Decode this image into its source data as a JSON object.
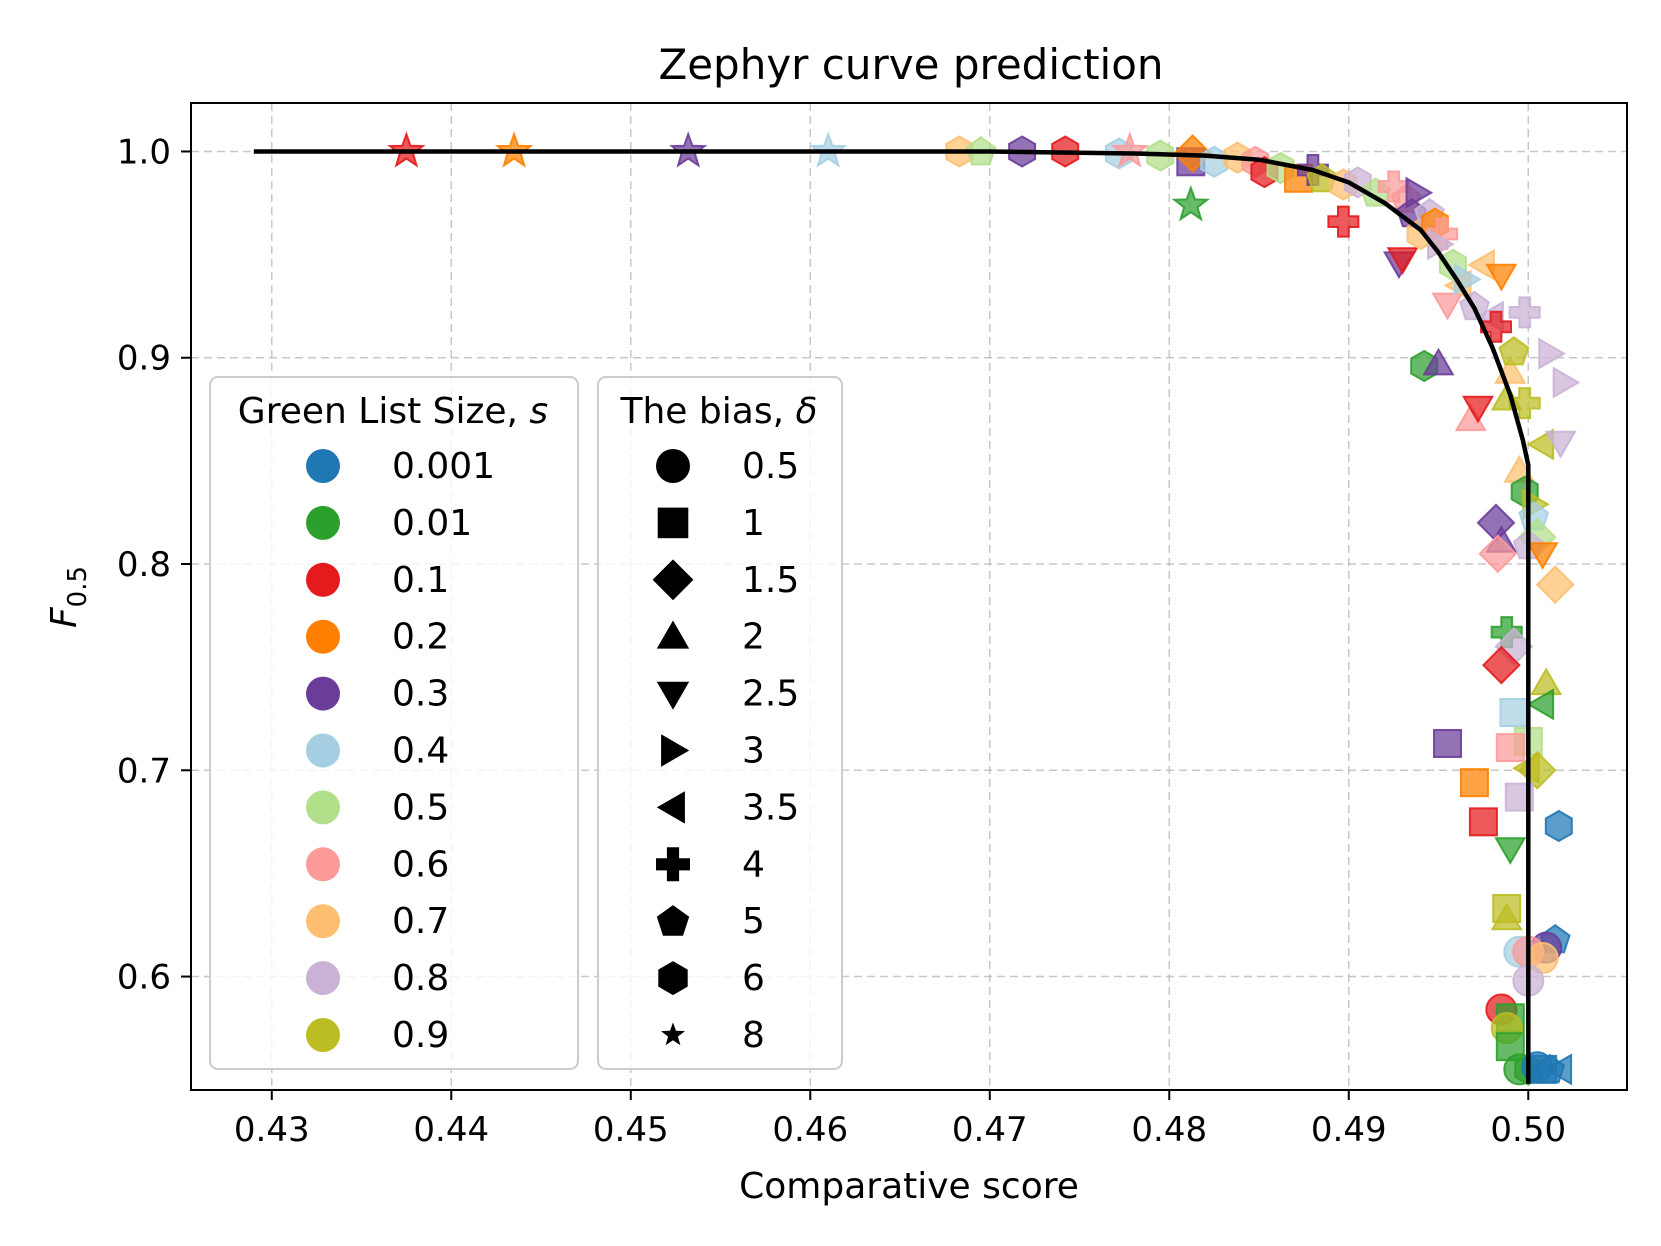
{
  "chart_data": {
    "type": "scatter",
    "title": "Zephyr curve prediction",
    "xlabel": "Comparative score",
    "ylabel_main": "F",
    "ylabel_sub": "0.5",
    "xlim": [
      0.4255,
      0.5055
    ],
    "ylim": [
      0.545,
      1.0235
    ],
    "xticks": [
      {
        "value": 0.43,
        "label": "0.43"
      },
      {
        "value": 0.44,
        "label": "0.44"
      },
      {
        "value": 0.45,
        "label": "0.45"
      },
      {
        "value": 0.46,
        "label": "0.46"
      },
      {
        "value": 0.47,
        "label": "0.47"
      },
      {
        "value": 0.48,
        "label": "0.48"
      },
      {
        "value": 0.49,
        "label": "0.49"
      },
      {
        "value": 0.5,
        "label": "0.50"
      }
    ],
    "yticks": [
      {
        "value": 0.6,
        "label": "0.6"
      },
      {
        "value": 0.7,
        "label": "0.7"
      },
      {
        "value": 0.8,
        "label": "0.8"
      },
      {
        "value": 0.9,
        "label": "0.9"
      },
      {
        "value": 1.0,
        "label": "1.0"
      }
    ],
    "grid": true,
    "legend_green": {
      "title_main": "Green List Size, ",
      "title_var": "s",
      "entries": [
        {
          "label": "0.001",
          "color": "#1f77b4"
        },
        {
          "label": "0.01",
          "color": "#2ca02c"
        },
        {
          "label": "0.1",
          "color": "#e41a1c"
        },
        {
          "label": "0.2",
          "color": "#ff7f00"
        },
        {
          "label": "0.3",
          "color": "#6a3d9a"
        },
        {
          "label": "0.4",
          "color": "#a6cee3"
        },
        {
          "label": "0.5",
          "color": "#b2df8a"
        },
        {
          "label": "0.6",
          "color": "#fb9a99"
        },
        {
          "label": "0.7",
          "color": "#fdbf6f"
        },
        {
          "label": "0.8",
          "color": "#cab2d6"
        },
        {
          "label": "0.9",
          "color": "#bcbd22"
        }
      ]
    },
    "legend_bias": {
      "title_main": "The bias, ",
      "title_var": "δ",
      "entries": [
        {
          "label": "0.5",
          "marker": "circle"
        },
        {
          "label": "1",
          "marker": "square"
        },
        {
          "label": "1.5",
          "marker": "diamond"
        },
        {
          "label": "2",
          "marker": "triangle-up"
        },
        {
          "label": "2.5",
          "marker": "triangle-down"
        },
        {
          "label": "3",
          "marker": "triangle-right"
        },
        {
          "label": "3.5",
          "marker": "triangle-left"
        },
        {
          "label": "4",
          "marker": "plus"
        },
        {
          "label": "5",
          "marker": "pentagon"
        },
        {
          "label": "6",
          "marker": "hexagon"
        },
        {
          "label": "8",
          "marker": "star"
        }
      ]
    },
    "curve": {
      "color": "#000000",
      "points": [
        [
          0.429,
          1.0
        ],
        [
          0.45,
          1.0
        ],
        [
          0.47,
          1.0
        ],
        [
          0.478,
          0.999
        ],
        [
          0.482,
          0.998
        ],
        [
          0.485,
          0.996
        ],
        [
          0.488,
          0.991
        ],
        [
          0.49,
          0.985
        ],
        [
          0.492,
          0.975
        ],
        [
          0.494,
          0.962
        ],
        [
          0.495,
          0.951
        ],
        [
          0.496,
          0.938
        ],
        [
          0.497,
          0.924
        ],
        [
          0.498,
          0.905
        ],
        [
          0.499,
          0.882
        ],
        [
          0.4997,
          0.86
        ],
        [
          0.5,
          0.848
        ],
        [
          0.5,
          0.548
        ]
      ]
    },
    "points": [
      {
        "x": 0.4375,
        "y": 1.0,
        "s": 2,
        "m": "star"
      },
      {
        "x": 0.4435,
        "y": 1.0,
        "s": 3,
        "m": "star"
      },
      {
        "x": 0.4532,
        "y": 1.0,
        "s": 4,
        "m": "star"
      },
      {
        "x": 0.461,
        "y": 1.0,
        "s": 5,
        "m": "star"
      },
      {
        "x": 0.4683,
        "y": 1.0,
        "s": 8,
        "m": "hexagon"
      },
      {
        "x": 0.4695,
        "y": 1.0,
        "s": 6,
        "m": "pentagon"
      },
      {
        "x": 0.4718,
        "y": 1.0,
        "s": 4,
        "m": "hexagon"
      },
      {
        "x": 0.4742,
        "y": 1.0,
        "s": 2,
        "m": "hexagon"
      },
      {
        "x": 0.4772,
        "y": 0.999,
        "s": 5,
        "m": "hexagon"
      },
      {
        "x": 0.4778,
        "y": 1.0,
        "s": 7,
        "m": "star"
      },
      {
        "x": 0.4795,
        "y": 0.998,
        "s": 6,
        "m": "hexagon"
      },
      {
        "x": 0.4812,
        "y": 0.974,
        "s": 1,
        "m": "star"
      },
      {
        "x": 0.4812,
        "y": 0.995,
        "s": 4,
        "m": "square"
      },
      {
        "x": 0.4813,
        "y": 0.999,
        "s": 3,
        "m": "diamond"
      },
      {
        "x": 0.4825,
        "y": 0.995,
        "s": 5,
        "m": "hexagon"
      },
      {
        "x": 0.4838,
        "y": 0.997,
        "s": 8,
        "m": "hexagon"
      },
      {
        "x": 0.4848,
        "y": 0.995,
        "s": 7,
        "m": "hexagon"
      },
      {
        "x": 0.4853,
        "y": 0.99,
        "s": 2,
        "m": "hexagon"
      },
      {
        "x": 0.4862,
        "y": 0.992,
        "s": 6,
        "m": "hexagon"
      },
      {
        "x": 0.4872,
        "y": 0.987,
        "s": 3,
        "m": "square"
      },
      {
        "x": 0.488,
        "y": 0.991,
        "s": 4,
        "m": "plus"
      },
      {
        "x": 0.4885,
        "y": 0.987,
        "s": 10,
        "m": "pentagon"
      },
      {
        "x": 0.4897,
        "y": 0.966,
        "s": 2,
        "m": "plus"
      },
      {
        "x": 0.4897,
        "y": 0.984,
        "s": 8,
        "m": "hexagon"
      },
      {
        "x": 0.4905,
        "y": 0.985,
        "s": 9,
        "m": "hexagon"
      },
      {
        "x": 0.4915,
        "y": 0.98,
        "s": 6,
        "m": "pentagon"
      },
      {
        "x": 0.4925,
        "y": 0.983,
        "s": 7,
        "m": "plus"
      },
      {
        "x": 0.4928,
        "y": 0.946,
        "s": 4,
        "m": "triangle-down"
      },
      {
        "x": 0.493,
        "y": 0.948,
        "s": 2,
        "m": "triangle-down"
      },
      {
        "x": 0.4932,
        "y": 0.977,
        "s": 7,
        "m": "pentagon"
      },
      {
        "x": 0.4935,
        "y": 0.97,
        "s": 4,
        "m": "pentagon"
      },
      {
        "x": 0.4938,
        "y": 0.98,
        "s": 4,
        "m": "triangle-right"
      },
      {
        "x": 0.494,
        "y": 0.96,
        "s": 8,
        "m": "hexagon"
      },
      {
        "x": 0.4945,
        "y": 0.97,
        "s": 9,
        "m": "pentagon"
      },
      {
        "x": 0.4948,
        "y": 0.965,
        "s": 3,
        "m": "hexagon"
      },
      {
        "x": 0.4952,
        "y": 0.96,
        "s": 7,
        "m": "plus"
      },
      {
        "x": 0.4955,
        "y": 0.926,
        "s": 7,
        "m": "triangle-down"
      },
      {
        "x": 0.4958,
        "y": 0.945,
        "s": 6,
        "m": "hexagon"
      },
      {
        "x": 0.495,
        "y": 0.955,
        "s": 9,
        "m": "triangle-right"
      },
      {
        "x": 0.4942,
        "y": 0.896,
        "s": 1,
        "m": "hexagon"
      },
      {
        "x": 0.495,
        "y": 0.897,
        "s": 4,
        "m": "triangle-up"
      },
      {
        "x": 0.4962,
        "y": 0.935,
        "s": 8,
        "m": "triangle-left"
      },
      {
        "x": 0.4965,
        "y": 0.938,
        "s": 5,
        "m": "triangle-right"
      },
      {
        "x": 0.497,
        "y": 0.925,
        "s": 9,
        "m": "pentagon"
      },
      {
        "x": 0.4968,
        "y": 0.87,
        "s": 7,
        "m": "triangle-up"
      },
      {
        "x": 0.4972,
        "y": 0.876,
        "s": 2,
        "m": "triangle-down"
      },
      {
        "x": 0.4975,
        "y": 0.945,
        "s": 8,
        "m": "triangle-left"
      },
      {
        "x": 0.498,
        "y": 0.92,
        "s": 9,
        "m": "triangle-left"
      },
      {
        "x": 0.4982,
        "y": 0.915,
        "s": 2,
        "m": "plus"
      },
      {
        "x": 0.4985,
        "y": 0.94,
        "s": 3,
        "m": "triangle-down"
      },
      {
        "x": 0.499,
        "y": 0.893,
        "s": 8,
        "m": "triangle-up"
      },
      {
        "x": 0.4988,
        "y": 0.88,
        "s": 10,
        "m": "triangle-up"
      },
      {
        "x": 0.4992,
        "y": 0.903,
        "s": 10,
        "m": "pentagon"
      },
      {
        "x": 0.4998,
        "y": 0.922,
        "s": 9,
        "m": "plus"
      },
      {
        "x": 0.4998,
        "y": 0.878,
        "s": 10,
        "m": "plus"
      },
      {
        "x": 0.5012,
        "y": 0.902,
        "s": 9,
        "m": "triangle-right"
      },
      {
        "x": 0.502,
        "y": 0.888,
        "s": 9,
        "m": "triangle-right"
      },
      {
        "x": 0.5008,
        "y": 0.858,
        "s": 10,
        "m": "triangle-left"
      },
      {
        "x": 0.5018,
        "y": 0.859,
        "s": 9,
        "m": "triangle-down"
      },
      {
        "x": 0.4995,
        "y": 0.845,
        "s": 8,
        "m": "triangle-up"
      },
      {
        "x": 0.4998,
        "y": 0.835,
        "s": 1,
        "m": "hexagon"
      },
      {
        "x": 0.5003,
        "y": 0.829,
        "s": 10,
        "m": "triangle-right"
      },
      {
        "x": 0.5003,
        "y": 0.823,
        "s": 5,
        "m": "pentagon"
      },
      {
        "x": 0.5005,
        "y": 0.813,
        "s": 6,
        "m": "diamond"
      },
      {
        "x": 0.4982,
        "y": 0.82,
        "s": 4,
        "m": "diamond"
      },
      {
        "x": 0.4985,
        "y": 0.811,
        "s": 4,
        "m": "triangle-up"
      },
      {
        "x": 0.4983,
        "y": 0.805,
        "s": 7,
        "m": "diamond"
      },
      {
        "x": 0.5,
        "y": 0.809,
        "s": 9,
        "m": "pentagon"
      },
      {
        "x": 0.5008,
        "y": 0.805,
        "s": 3,
        "m": "triangle-down"
      },
      {
        "x": 0.5015,
        "y": 0.79,
        "s": 8,
        "m": "diamond"
      },
      {
        "x": 0.4988,
        "y": 0.767,
        "s": 1,
        "m": "plus"
      },
      {
        "x": 0.4992,
        "y": 0.76,
        "s": 9,
        "m": "diamond"
      },
      {
        "x": 0.4985,
        "y": 0.751,
        "s": 2,
        "m": "diamond"
      },
      {
        "x": 0.501,
        "y": 0.742,
        "s": 10,
        "m": "triangle-up"
      },
      {
        "x": 0.5008,
        "y": 0.732,
        "s": 1,
        "m": "triangle-left"
      },
      {
        "x": 0.4992,
        "y": 0.728,
        "s": 5,
        "m": "square"
      },
      {
        "x": 0.5,
        "y": 0.714,
        "s": 6,
        "m": "square"
      },
      {
        "x": 0.499,
        "y": 0.711,
        "s": 7,
        "m": "square"
      },
      {
        "x": 0.4955,
        "y": 0.713,
        "s": 4,
        "m": "square"
      },
      {
        "x": 0.497,
        "y": 0.694,
        "s": 3,
        "m": "square"
      },
      {
        "x": 0.4975,
        "y": 0.675,
        "s": 2,
        "m": "square"
      },
      {
        "x": 0.5005,
        "y": 0.7,
        "s": 10,
        "m": "diamond"
      },
      {
        "x": 0.5,
        "y": 0.701,
        "s": 10,
        "m": "triangle-left"
      },
      {
        "x": 0.4995,
        "y": 0.687,
        "s": 9,
        "m": "square"
      },
      {
        "x": 0.5017,
        "y": 0.673,
        "s": 0,
        "m": "hexagon"
      },
      {
        "x": 0.499,
        "y": 0.662,
        "s": 1,
        "m": "triangle-down"
      },
      {
        "x": 0.4988,
        "y": 0.633,
        "s": 10,
        "m": "square"
      },
      {
        "x": 0.4988,
        "y": 0.628,
        "s": 10,
        "m": "triangle-up"
      },
      {
        "x": 0.5015,
        "y": 0.618,
        "s": 0,
        "m": "pentagon"
      },
      {
        "x": 0.501,
        "y": 0.614,
        "s": 4,
        "m": "circle"
      },
      {
        "x": 0.4995,
        "y": 0.612,
        "s": 5,
        "m": "circle"
      },
      {
        "x": 0.5,
        "y": 0.612,
        "s": 7,
        "m": "circle"
      },
      {
        "x": 0.5008,
        "y": 0.609,
        "s": 8,
        "m": "circle"
      },
      {
        "x": 0.5,
        "y": 0.598,
        "s": 9,
        "m": "circle"
      },
      {
        "x": 0.4985,
        "y": 0.584,
        "s": 2,
        "m": "circle"
      },
      {
        "x": 0.499,
        "y": 0.58,
        "s": 1,
        "m": "square"
      },
      {
        "x": 0.4988,
        "y": 0.575,
        "s": 10,
        "m": "circle"
      },
      {
        "x": 0.499,
        "y": 0.566,
        "s": 1,
        "m": "square"
      },
      {
        "x": 0.4995,
        "y": 0.555,
        "s": 1,
        "m": "circle"
      },
      {
        "x": 0.5,
        "y": 0.555,
        "s": 1,
        "m": "hexagon"
      },
      {
        "x": 0.5005,
        "y": 0.556,
        "s": 0,
        "m": "circle"
      },
      {
        "x": 0.5008,
        "y": 0.555,
        "s": 0,
        "m": "square"
      },
      {
        "x": 0.5012,
        "y": 0.555,
        "s": 0,
        "m": "pentagon"
      },
      {
        "x": 0.5018,
        "y": 0.555,
        "s": 0,
        "m": "triangle-left"
      }
    ]
  }
}
